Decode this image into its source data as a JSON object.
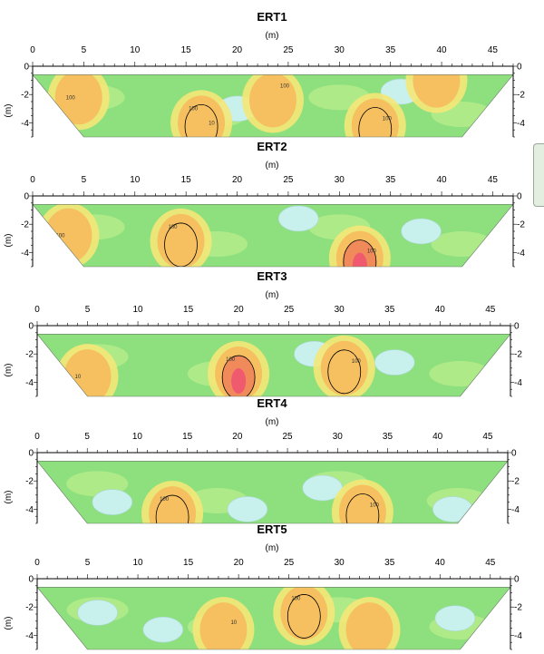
{
  "chart_data": [
    {
      "type": "heatmap",
      "title": "ERT1",
      "xlabel": "(m)",
      "ylabel": "(m)",
      "xlim": [
        0,
        47
      ],
      "ylim": [
        -5,
        0
      ],
      "x_ticks": [
        0,
        5,
        10,
        15,
        20,
        25,
        30,
        35,
        40,
        45
      ],
      "y_ticks": [
        0,
        -2,
        -4
      ],
      "contour_labels": [
        "100",
        "100",
        "100",
        "100",
        "100",
        "10"
      ],
      "high_zones": [
        {
          "x": 16.5,
          "y": -4.0,
          "level": "high"
        },
        {
          "x": 33.5,
          "y": -4.2,
          "level": "high"
        },
        {
          "x": 4.5,
          "y": -2.2,
          "level": "moderate"
        },
        {
          "x": 23.5,
          "y": -2.4,
          "level": "moderate"
        },
        {
          "x": 39.5,
          "y": -1.0,
          "level": "moderate"
        }
      ],
      "low_zones": [
        {
          "x": 20.0,
          "y": -3.0,
          "level": "low"
        },
        {
          "x": 36.0,
          "y": -1.8,
          "level": "low"
        }
      ]
    },
    {
      "type": "heatmap",
      "title": "ERT2",
      "xlabel": "(m)",
      "ylabel": "(m)",
      "xlim": [
        0,
        47
      ],
      "ylim": [
        -5,
        0
      ],
      "x_ticks": [
        0,
        5,
        10,
        15,
        20,
        25,
        30,
        35,
        40,
        45
      ],
      "y_ticks": [
        0,
        -2,
        -4
      ],
      "contour_labels": [
        "100",
        "100",
        "100"
      ],
      "high_zones": [
        {
          "x": 14.5,
          "y": -3.2,
          "level": "high"
        },
        {
          "x": 32.0,
          "y": -4.4,
          "level": "very-high"
        },
        {
          "x": 3.5,
          "y": -2.8,
          "level": "moderate"
        }
      ],
      "low_zones": [
        {
          "x": 26.0,
          "y": -1.6,
          "level": "low"
        },
        {
          "x": 38.0,
          "y": -2.5,
          "level": "low"
        }
      ]
    },
    {
      "type": "heatmap",
      "title": "ERT3",
      "xlabel": "(m)",
      "ylabel": "(m)",
      "xlim": [
        0,
        47
      ],
      "ylim": [
        -5,
        0
      ],
      "x_ticks": [
        0,
        5,
        10,
        15,
        20,
        25,
        30,
        35,
        40,
        45
      ],
      "y_ticks": [
        0,
        -2,
        -4
      ],
      "contour_labels": [
        "100",
        "100",
        "10"
      ],
      "high_zones": [
        {
          "x": 20.0,
          "y": -3.4,
          "level": "very-high"
        },
        {
          "x": 30.5,
          "y": -3.0,
          "level": "high"
        },
        {
          "x": 5.0,
          "y": -3.6,
          "level": "moderate"
        }
      ],
      "low_zones": [
        {
          "x": 27.5,
          "y": -2.0,
          "level": "low"
        },
        {
          "x": 35.5,
          "y": -2.6,
          "level": "low"
        }
      ]
    },
    {
      "type": "heatmap",
      "title": "ERT4",
      "xlabel": "(m)",
      "ylabel": "(m)",
      "xlim": [
        0,
        47
      ],
      "ylim": [
        -5,
        0
      ],
      "x_ticks": [
        0,
        5,
        10,
        15,
        20,
        25,
        30,
        35,
        40,
        45
      ],
      "y_ticks": [
        0,
        -2,
        -4
      ],
      "contour_labels": [
        "100",
        "100"
      ],
      "high_zones": [
        {
          "x": 13.5,
          "y": -4.3,
          "level": "high"
        },
        {
          "x": 32.5,
          "y": -4.2,
          "level": "high"
        }
      ],
      "low_zones": [
        {
          "x": 7.5,
          "y": -3.5,
          "level": "low"
        },
        {
          "x": 21.0,
          "y": -4.0,
          "level": "low"
        },
        {
          "x": 28.5,
          "y": -2.5,
          "level": "low"
        },
        {
          "x": 41.5,
          "y": -4.0,
          "level": "low"
        }
      ]
    },
    {
      "type": "heatmap",
      "title": "ERT5",
      "xlabel": "(m)",
      "ylabel": "(m)",
      "xlim": [
        0,
        47
      ],
      "ylim": [
        -5,
        0
      ],
      "x_ticks": [
        0,
        5,
        10,
        15,
        20,
        25,
        30,
        35,
        40,
        45
      ],
      "y_ticks": [
        0,
        -2,
        -4
      ],
      "contour_labels": [
        "100",
        "10"
      ],
      "high_zones": [
        {
          "x": 26.5,
          "y": -2.4,
          "level": "high"
        },
        {
          "x": 18.5,
          "y": -3.6,
          "level": "moderate"
        },
        {
          "x": 33.0,
          "y": -3.6,
          "level": "moderate"
        }
      ],
      "low_zones": [
        {
          "x": 12.5,
          "y": -3.6,
          "level": "low"
        },
        {
          "x": 6.0,
          "y": -2.4,
          "level": "low"
        },
        {
          "x": 41.5,
          "y": -2.8,
          "level": "low"
        }
      ]
    }
  ],
  "colors": {
    "background": "#ffffff",
    "base_fill": "#8ee07e",
    "light_fill": "#b8ec8c",
    "low_fill": "#c8f0ec",
    "moderate_fill": "#f4e878",
    "high_fill": "#f6c060",
    "very_high_fill": "#f08a5a",
    "peak_fill": "#ef5a6e",
    "axis": "#000000"
  }
}
